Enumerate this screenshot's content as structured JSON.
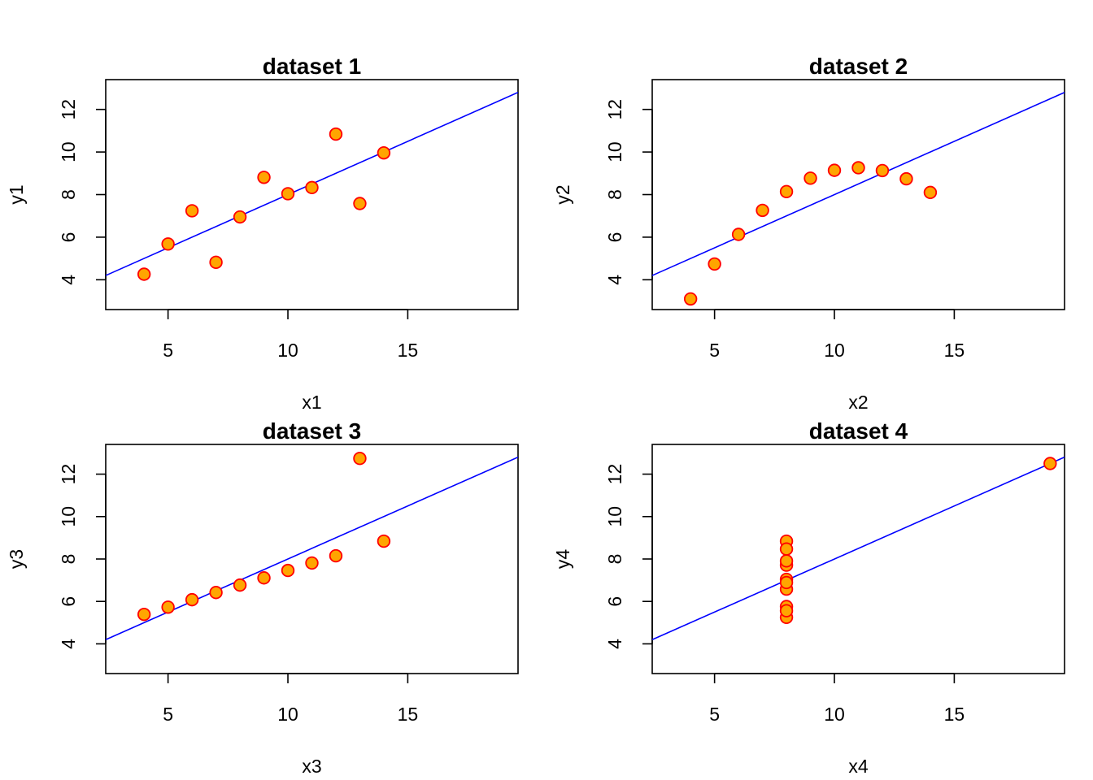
{
  "chart_data": [
    {
      "type": "scatter",
      "title": "dataset 1",
      "xlabel": "x1",
      "ylabel": "y1",
      "xlim": [
        2.4,
        19.6
      ],
      "ylim": [
        2.6,
        13.4
      ],
      "xticks": [
        5,
        10,
        15
      ],
      "yticks": [
        4,
        6,
        8,
        10,
        12
      ],
      "x": [
        10,
        8,
        13,
        9,
        11,
        14,
        6,
        4,
        12,
        7,
        5
      ],
      "y": [
        8.04,
        6.95,
        7.58,
        8.81,
        8.33,
        9.96,
        7.24,
        4.26,
        10.84,
        4.82,
        5.68
      ],
      "fit": {
        "intercept": 3.0,
        "slope": 0.5
      },
      "grid": false
    },
    {
      "type": "scatter",
      "title": "dataset 2",
      "xlabel": "x2",
      "ylabel": "y2",
      "xlim": [
        2.4,
        19.6
      ],
      "ylim": [
        2.6,
        13.4
      ],
      "xticks": [
        5,
        10,
        15
      ],
      "yticks": [
        4,
        6,
        8,
        10,
        12
      ],
      "x": [
        10,
        8,
        13,
        9,
        11,
        14,
        6,
        4,
        12,
        7,
        5
      ],
      "y": [
        9.14,
        8.14,
        8.74,
        8.77,
        9.26,
        8.1,
        6.13,
        3.1,
        9.13,
        7.26,
        4.74
      ],
      "fit": {
        "intercept": 3.0,
        "slope": 0.5
      },
      "grid": false
    },
    {
      "type": "scatter",
      "title": "dataset 3",
      "xlabel": "x3",
      "ylabel": "y3",
      "xlim": [
        2.4,
        19.6
      ],
      "ylim": [
        2.6,
        13.4
      ],
      "xticks": [
        5,
        10,
        15
      ],
      "yticks": [
        4,
        6,
        8,
        10,
        12
      ],
      "x": [
        10,
        8,
        13,
        9,
        11,
        14,
        6,
        4,
        12,
        7,
        5
      ],
      "y": [
        7.46,
        6.77,
        12.74,
        7.11,
        7.81,
        8.84,
        6.08,
        5.39,
        8.15,
        6.42,
        5.73
      ],
      "fit": {
        "intercept": 3.0,
        "slope": 0.5
      },
      "grid": false
    },
    {
      "type": "scatter",
      "title": "dataset 4",
      "xlabel": "x4",
      "ylabel": "y4",
      "xlim": [
        2.4,
        19.6
      ],
      "ylim": [
        2.6,
        13.4
      ],
      "xticks": [
        5,
        10,
        15
      ],
      "yticks": [
        4,
        6,
        8,
        10,
        12
      ],
      "x": [
        8,
        8,
        8,
        8,
        8,
        8,
        8,
        19,
        8,
        8,
        8
      ],
      "y": [
        6.58,
        5.76,
        7.71,
        8.84,
        8.47,
        7.04,
        5.25,
        12.5,
        5.56,
        7.91,
        6.89
      ],
      "fit": {
        "intercept": 3.0,
        "slope": 0.5
      },
      "grid": false
    }
  ],
  "colors": {
    "point_fill": "#FFA500",
    "point_stroke": "#FF0000",
    "fit_line": "#0000FF",
    "axes": "#000000"
  }
}
